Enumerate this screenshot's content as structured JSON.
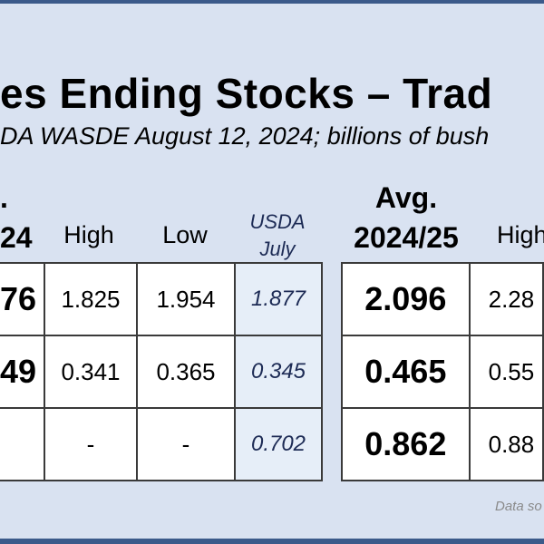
{
  "slide": {
    "title": "es Ending Stocks – Trad",
    "subtitle": "DA WASDE August 12, 2024; billions of bush",
    "source_note": "Data so"
  },
  "table_left": {
    "headers": {
      "avg_partial_top": ".",
      "avg_partial_bottom": "24",
      "high": "High",
      "low": "Low",
      "usda_line1": "USDA",
      "usda_line2": "July"
    },
    "rows": [
      {
        "avg": "76",
        "high": "1.825",
        "low": "1.954",
        "usda": "1.877"
      },
      {
        "avg": "49",
        "high": "0.341",
        "low": "0.365",
        "usda": "0.345"
      },
      {
        "avg": "",
        "high": "-",
        "low": "-",
        "usda": "0.702"
      }
    ]
  },
  "table_right": {
    "headers": {
      "avg_line1": "Avg.",
      "avg_line2": "2024/25",
      "high": "High"
    },
    "rows": [
      {
        "avg": "2.096",
        "high": "2.28"
      },
      {
        "avg": "0.465",
        "high": "0.55"
      },
      {
        "avg": "0.862",
        "high": "0.88"
      }
    ]
  },
  "colors": {
    "background": "#d9e2f1",
    "frame": "#3b5a8a",
    "usda_column_fill": "#e6eef8"
  }
}
